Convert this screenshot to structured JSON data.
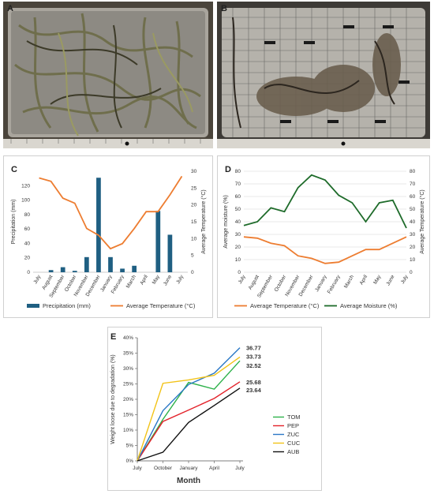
{
  "panels": {
    "A": "A",
    "B": "B"
  },
  "chart_data": [
    {
      "panel": "C",
      "type": "bar",
      "categories": [
        "July",
        "August",
        "September",
        "October",
        "November",
        "December",
        "January",
        "February",
        "March",
        "April",
        "May",
        "June",
        "July"
      ],
      "series": [
        {
          "name": "Precipitation (mm)",
          "type": "bar",
          "axis": "left",
          "color": "#1f5f82",
          "values": [
            0,
            3,
            7,
            2,
            21,
            131,
            21,
            5,
            9,
            0,
            85,
            52,
            0
          ]
        },
        {
          "name": "Average Temperature (°C)",
          "type": "line",
          "axis": "right",
          "color": "#ed7d31",
          "values": [
            28,
            27,
            22,
            20.5,
            13,
            11,
            7,
            8.5,
            13,
            18,
            18,
            23,
            28.5
          ]
        }
      ],
      "ylabel": "Precipitation (mm)",
      "y2label": "Average Temperature (°C)",
      "ylim": [
        0,
        140
      ],
      "yticks": [
        0,
        20,
        40,
        60,
        80,
        100,
        120
      ],
      "y2lim": [
        0,
        30
      ],
      "y2ticks": [
        0,
        5,
        10,
        15,
        20,
        25,
        30
      ],
      "grid": false,
      "legend": "bottom"
    },
    {
      "panel": "D",
      "type": "line",
      "categories": [
        "July",
        "August",
        "September",
        "October",
        "November",
        "December",
        "January",
        "February",
        "March",
        "April",
        "May",
        "June",
        "July"
      ],
      "series": [
        {
          "name": "Average Temperature (°C)",
          "axis": "right",
          "color": "#ed7d31",
          "values": [
            28,
            27,
            23,
            21,
            13,
            11,
            7,
            8,
            13,
            18,
            18,
            23,
            28
          ]
        },
        {
          "name": "Average Moisture (%)",
          "axis": "left",
          "color": "#1e6b2a",
          "values": [
            37,
            40,
            51,
            48,
            67,
            77,
            73,
            61,
            55,
            40,
            55,
            57,
            35
          ]
        }
      ],
      "ylabel": "Average moisture (%)",
      "y2label": "Average Temperature (°C)",
      "ylim": [
        0,
        80
      ],
      "yticks": [
        0,
        10,
        20,
        30,
        40,
        50,
        60,
        70,
        80
      ],
      "y2lim": [
        0,
        80
      ],
      "y2ticks": [
        0,
        10,
        20,
        30,
        40,
        50,
        60,
        70,
        80
      ],
      "grid": true,
      "legend": "bottom"
    },
    {
      "panel": "E",
      "type": "line",
      "categories": [
        "July",
        "October",
        "January",
        "April",
        "July"
      ],
      "series": [
        {
          "name": "TOM",
          "color": "#2db14a",
          "values": [
            0,
            13.5,
            25.5,
            23.3,
            32.52
          ]
        },
        {
          "name": "PEP",
          "color": "#e3222a",
          "values": [
            0,
            12.8,
            16.5,
            20.3,
            25.68
          ]
        },
        {
          "name": "ZUC",
          "color": "#2b78c6",
          "values": [
            0,
            16.3,
            24.8,
            28.5,
            36.77
          ]
        },
        {
          "name": "CUC",
          "color": "#f2c318",
          "values": [
            0,
            25.2,
            26.3,
            27.8,
            33.73
          ]
        },
        {
          "name": "AUB",
          "color": "#111111",
          "values": [
            0,
            2.8,
            12.5,
            18.0,
            23.64
          ]
        }
      ],
      "end_labels": [
        "36.77",
        "33.73",
        "32.52",
        "25.68",
        "23.64"
      ],
      "xlabel": "Month",
      "ylabel": "Weight loose due to degradation (%)",
      "ylim": [
        0,
        40
      ],
      "yticks": [
        0,
        5,
        10,
        15,
        20,
        25,
        30,
        35,
        40
      ],
      "ytick_suffix": "",
      "grid": false,
      "legend": "right"
    }
  ],
  "tick_suffix_pct": "%",
  "colors": {
    "photo_tray": "#b7b4ae",
    "photo_bg": "#3a3630"
  }
}
